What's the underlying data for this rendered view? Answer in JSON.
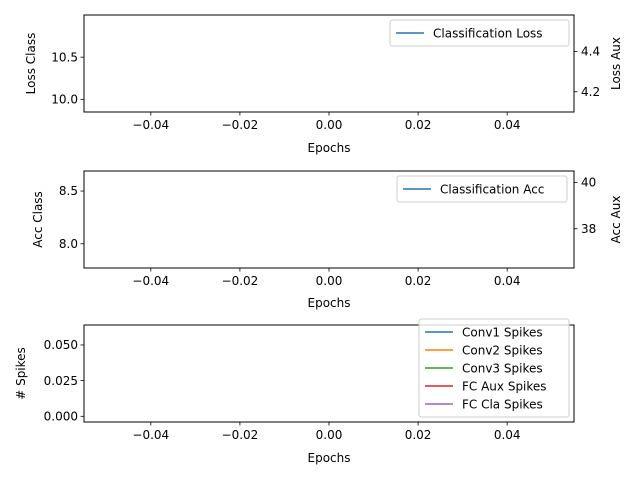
{
  "chart_data": [
    {
      "type": "line",
      "xlabel": "Epochs",
      "ylabel": "Loss Class",
      "ylabel_right": "Loss Aux",
      "xlim": [
        -0.055,
        0.055
      ],
      "xticks": [
        -0.04,
        -0.02,
        0.0,
        0.02,
        0.04
      ],
      "xtick_labels": [
        "−0.04",
        "−0.02",
        "0.00",
        "0.02",
        "0.04"
      ],
      "ylim": [
        9.85,
        11.0
      ],
      "yticks": [
        10.0,
        10.5
      ],
      "ytick_labels": [
        "10.0",
        "10.5"
      ],
      "ylim_right": [
        4.1,
        4.58
      ],
      "yticks_right": [
        4.2,
        4.4
      ],
      "ytick_labels_right": [
        "4.2",
        "4.4"
      ],
      "legend_position": "upper right",
      "series": [
        {
          "name": "Classification Loss",
          "color": "#1f77b4",
          "x": [],
          "y": []
        }
      ]
    },
    {
      "type": "line",
      "xlabel": "Epochs",
      "ylabel": "Acc Class",
      "ylabel_right": "Acc Aux",
      "xlim": [
        -0.055,
        0.055
      ],
      "xticks": [
        -0.04,
        -0.02,
        0.0,
        0.02,
        0.04
      ],
      "xtick_labels": [
        "−0.04",
        "−0.02",
        "0.00",
        "0.02",
        "0.04"
      ],
      "ylim": [
        7.77,
        8.69
      ],
      "yticks": [
        8.0,
        8.5
      ],
      "ytick_labels": [
        "8.0",
        "8.5"
      ],
      "ylim_right": [
        36.3,
        40.5
      ],
      "yticks_right": [
        38,
        40
      ],
      "ytick_labels_right": [
        "38",
        "40"
      ],
      "legend_position": "upper right",
      "series": [
        {
          "name": "Classification Acc",
          "color": "#1f77b4",
          "x": [],
          "y": []
        }
      ]
    },
    {
      "type": "line",
      "xlabel": "Epochs",
      "ylabel": "# Spikes",
      "xlim": [
        -0.055,
        0.055
      ],
      "xticks": [
        -0.04,
        -0.02,
        0.0,
        0.02,
        0.04
      ],
      "xtick_labels": [
        "−0.04",
        "−0.02",
        "0.00",
        "0.02",
        "0.04"
      ],
      "ylim": [
        -0.004,
        0.064
      ],
      "yticks": [
        0.0,
        0.025,
        0.05
      ],
      "ytick_labels": [
        "0.000",
        "0.025",
        "0.050"
      ],
      "legend_position": "lower right",
      "series": [
        {
          "name": "Conv1 Spikes",
          "color": "#1f77b4",
          "x": [],
          "y": []
        },
        {
          "name": "Conv2 Spikes",
          "color": "#ff7f0e",
          "x": [],
          "y": []
        },
        {
          "name": "Conv3 Spikes",
          "color": "#2ca02c",
          "x": [],
          "y": []
        },
        {
          "name": "FC Aux Spikes",
          "color": "#d62728",
          "x": [],
          "y": []
        },
        {
          "name": "FC Cla Spikes",
          "color": "#9467bd",
          "x": [],
          "y": []
        }
      ]
    }
  ]
}
